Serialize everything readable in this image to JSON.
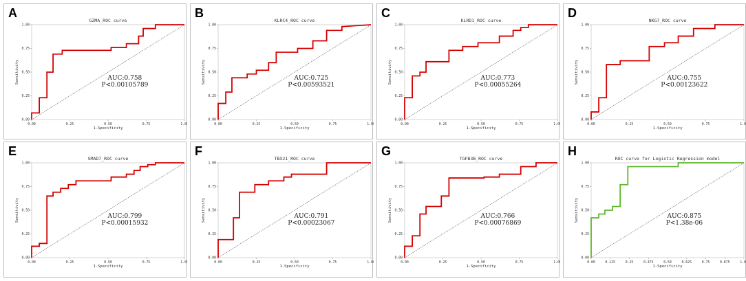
{
  "chart_data": [
    {
      "letter": "A",
      "type": "line",
      "title": "GZMA_ROC curve",
      "xlabel": "1-Specificity",
      "ylabel": "Sensitivity",
      "xlim": [
        0,
        1
      ],
      "ylim": [
        0,
        1
      ],
      "xticks": [
        "0.00",
        "0.25",
        "0.50",
        "0.75",
        "1.00"
      ],
      "yticks": [
        "0.00",
        "0.25",
        "0.50",
        "0.75",
        "1.00"
      ],
      "color": "#d40000",
      "auc_text": "AUC:0.758",
      "p_text": "P<0.00105789",
      "x": [
        0,
        0,
        0.05,
        0.05,
        0.1,
        0.1,
        0.14,
        0.14,
        0.2,
        0.2,
        0.52,
        0.52,
        0.62,
        0.62,
        0.7,
        0.7,
        0.73,
        0.73,
        0.81,
        0.81,
        1
      ],
      "y": [
        0,
        0.07,
        0.07,
        0.23,
        0.23,
        0.5,
        0.5,
        0.69,
        0.69,
        0.73,
        0.73,
        0.76,
        0.76,
        0.8,
        0.8,
        0.88,
        0.88,
        0.96,
        0.96,
        1,
        1
      ]
    },
    {
      "letter": "B",
      "type": "line",
      "title": "KLRC4_ROC curve",
      "xlabel": "1-Specificity",
      "ylabel": "Sensitivity",
      "xlim": [
        0,
        1
      ],
      "ylim": [
        0,
        1
      ],
      "xticks": [
        "0.00",
        "0.25",
        "0.50",
        "0.75",
        "1.00"
      ],
      "yticks": [
        "0.00",
        "0.25",
        "0.50",
        "0.75",
        "1.00"
      ],
      "color": "#d40000",
      "auc_text": "AUC:0.725",
      "p_text": "P<0.00593521",
      "x": [
        0,
        0,
        0.05,
        0.05,
        0.09,
        0.09,
        0.19,
        0.19,
        0.25,
        0.25,
        0.33,
        0.33,
        0.38,
        0.38,
        0.52,
        0.52,
        0.62,
        0.62,
        0.71,
        0.71,
        0.81,
        0.81,
        1
      ],
      "y": [
        0,
        0.17,
        0.17,
        0.29,
        0.29,
        0.44,
        0.44,
        0.48,
        0.48,
        0.52,
        0.52,
        0.6,
        0.6,
        0.71,
        0.71,
        0.75,
        0.75,
        0.83,
        0.83,
        0.94,
        0.94,
        0.98,
        1
      ]
    },
    {
      "letter": "C",
      "type": "line",
      "title": "KLRD1_ROC curve",
      "xlabel": "1-Specificity",
      "ylabel": "Sensitivity",
      "xlim": [
        0,
        1
      ],
      "ylim": [
        0,
        1
      ],
      "xticks": [
        "0.00",
        "0.25",
        "0.50",
        "0.75",
        "1.00"
      ],
      "yticks": [
        "0.00",
        "0.25",
        "0.50",
        "0.75",
        "1.00"
      ],
      "color": "#d40000",
      "auc_text": "AUC:0.773",
      "p_text": "P<0.00055264",
      "x": [
        0,
        0,
        0.05,
        0.05,
        0.1,
        0.1,
        0.14,
        0.14,
        0.29,
        0.29,
        0.38,
        0.38,
        0.48,
        0.48,
        0.62,
        0.62,
        0.71,
        0.71,
        0.76,
        0.76,
        0.81,
        0.81,
        1
      ],
      "y": [
        0,
        0.23,
        0.23,
        0.46,
        0.46,
        0.5,
        0.5,
        0.61,
        0.61,
        0.73,
        0.73,
        0.77,
        0.77,
        0.81,
        0.81,
        0.88,
        0.88,
        0.94,
        0.94,
        0.97,
        0.97,
        1,
        1
      ]
    },
    {
      "letter": "D",
      "type": "line",
      "title": "NKG7_ROC curve",
      "xlabel": "1-Specificity",
      "ylabel": "Sensitivity",
      "xlim": [
        0,
        1
      ],
      "ylim": [
        0,
        1
      ],
      "xticks": [
        "0.00",
        "0.25",
        "0.50",
        "0.75",
        "1.00"
      ],
      "yticks": [
        "0.00",
        "0.25",
        "0.50",
        "0.75",
        "1.00"
      ],
      "color": "#d40000",
      "auc_text": "AUC:0.755",
      "p_text": "P<0.00123622",
      "x": [
        0,
        0,
        0.05,
        0.05,
        0.1,
        0.1,
        0.19,
        0.19,
        0.38,
        0.38,
        0.48,
        0.48,
        0.57,
        0.57,
        0.67,
        0.67,
        0.81,
        0.81,
        1
      ],
      "y": [
        0,
        0.08,
        0.08,
        0.23,
        0.23,
        0.58,
        0.58,
        0.62,
        0.62,
        0.77,
        0.77,
        0.81,
        0.81,
        0.88,
        0.88,
        0.96,
        0.96,
        1,
        1
      ]
    },
    {
      "letter": "E",
      "type": "line",
      "title": "SMAD7_ROC curve",
      "xlabel": "1-Specificity",
      "ylabel": "Sensitivity",
      "xlim": [
        0,
        1
      ],
      "ylim": [
        0,
        1
      ],
      "xticks": [
        "0.00",
        "0.25",
        "0.50",
        "0.75",
        "1.00"
      ],
      "yticks": [
        "0.00",
        "0.25",
        "0.50",
        "0.75",
        "1.00"
      ],
      "color": "#d40000",
      "auc_text": "AUC:0.799",
      "p_text": "P<0.00015932",
      "x": [
        0,
        0,
        0.05,
        0.05,
        0.1,
        0.1,
        0.14,
        0.14,
        0.19,
        0.19,
        0.24,
        0.24,
        0.29,
        0.29,
        0.52,
        0.52,
        0.62,
        0.62,
        0.67,
        0.67,
        0.71,
        0.71,
        0.76,
        0.76,
        0.81,
        0.81,
        1
      ],
      "y": [
        0,
        0.12,
        0.12,
        0.15,
        0.15,
        0.65,
        0.65,
        0.69,
        0.69,
        0.73,
        0.73,
        0.77,
        0.77,
        0.81,
        0.81,
        0.85,
        0.85,
        0.88,
        0.88,
        0.92,
        0.92,
        0.96,
        0.96,
        0.98,
        0.98,
        1,
        1
      ]
    },
    {
      "letter": "F",
      "type": "line",
      "title": "TBX21_ROC curve",
      "xlabel": "1-Specificity",
      "ylabel": "Sensitivity",
      "xlim": [
        0,
        1
      ],
      "ylim": [
        0,
        1
      ],
      "xticks": [
        "0.00",
        "0.25",
        "0.50",
        "0.75",
        "1.00"
      ],
      "yticks": [
        "0.00",
        "0.25",
        "0.50",
        "0.75",
        "1.00"
      ],
      "color": "#d40000",
      "auc_text": "AUC:0.791",
      "p_text": "P<0.00023067",
      "x": [
        0,
        0,
        0.1,
        0.1,
        0.14,
        0.14,
        0.24,
        0.24,
        0.33,
        0.33,
        0.43,
        0.43,
        0.48,
        0.48,
        0.71,
        0.71,
        1
      ],
      "y": [
        0,
        0.19,
        0.19,
        0.42,
        0.42,
        0.69,
        0.69,
        0.77,
        0.77,
        0.81,
        0.81,
        0.85,
        0.85,
        0.88,
        0.88,
        1,
        1
      ]
    },
    {
      "letter": "G",
      "type": "line",
      "title": "TGFB3B_ROC curve",
      "xlabel": "1-Specificity",
      "ylabel": "Sensitivity",
      "xlim": [
        0,
        1
      ],
      "ylim": [
        0,
        1
      ],
      "xticks": [
        "0.00",
        "0.25",
        "0.50",
        "0.75",
        "1.00"
      ],
      "yticks": [
        "0.00",
        "0.25",
        "0.50",
        "0.75",
        "1.00"
      ],
      "color": "#d40000",
      "auc_text": "AUC:0.766",
      "p_text": "P<0.00076869",
      "x": [
        0,
        0,
        0.05,
        0.05,
        0.1,
        0.1,
        0.14,
        0.14,
        0.24,
        0.24,
        0.29,
        0.29,
        0.52,
        0.52,
        0.62,
        0.62,
        0.76,
        0.76,
        0.86,
        0.86,
        1
      ],
      "y": [
        0,
        0.12,
        0.12,
        0.23,
        0.23,
        0.46,
        0.46,
        0.54,
        0.54,
        0.65,
        0.65,
        0.84,
        0.84,
        0.85,
        0.85,
        0.88,
        0.88,
        0.96,
        0.96,
        1,
        1
      ]
    },
    {
      "letter": "H",
      "type": "line",
      "title": "ROC curve for Logistic Regression model",
      "xlabel": "1-Specificity",
      "ylabel": "Sensitivity",
      "xlim": [
        0,
        1
      ],
      "ylim": [
        0,
        1
      ],
      "xticks": [
        "0.00",
        "0.125",
        "0.25",
        "0.375",
        "0.50",
        "0.625",
        "0.75",
        "0.875",
        "1.00"
      ],
      "yticks": [
        "0.00",
        "0.25",
        "0.50",
        "0.75",
        "1.00"
      ],
      "color": "#5cb82c",
      "auc_text": "AUC:0.875",
      "p_text": "P<1.38e-06",
      "x": [
        0,
        0,
        0.05,
        0.05,
        0.09,
        0.09,
        0.14,
        0.14,
        0.19,
        0.19,
        0.24,
        0.24,
        0.57,
        0.57,
        1
      ],
      "y": [
        0,
        0.42,
        0.42,
        0.46,
        0.46,
        0.5,
        0.5,
        0.54,
        0.54,
        0.77,
        0.77,
        0.96,
        0.96,
        1,
        1
      ]
    }
  ]
}
